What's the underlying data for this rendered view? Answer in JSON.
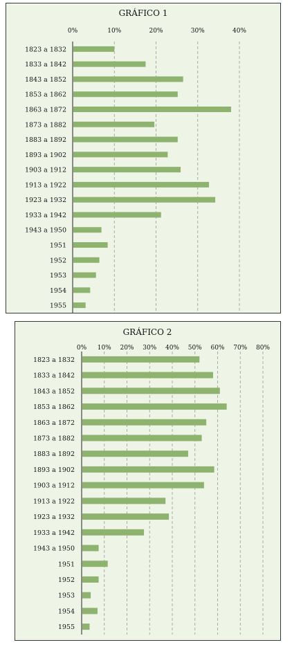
{
  "charts": [
    {
      "type": "bar",
      "orientation": "horizontal",
      "title": "GRÁFICO 1",
      "x_ticks": [
        "0%",
        "10%",
        "20%",
        "30%",
        "40%"
      ],
      "xlim": [
        0,
        40
      ],
      "grid": "vertical dashed",
      "bar_color": "#8db36f",
      "categories": [
        "1823 a 1832",
        "1833 a 1842",
        "1843 a 1852",
        "1853 a 1862",
        "1863 a 1872",
        "1873 a 1882",
        "1883 a 1892",
        "1893 a 1902",
        "1903 a 1912",
        "1913 a 1922",
        "1923 a 1932",
        "1933 a 1942",
        "1943 a 1950",
        "1951",
        "1952",
        "1953",
        "1954",
        "1955"
      ],
      "values": [
        10,
        17.5,
        26.5,
        25.2,
        38,
        19.6,
        25.2,
        22.8,
        25.9,
        32.7,
        34.2,
        21.2,
        6.9,
        8.4,
        6.4,
        5.6,
        4.2,
        3.1
      ]
    },
    {
      "type": "bar",
      "orientation": "horizontal",
      "title": "GRÁFICO 2",
      "x_ticks": [
        "0%",
        "10%",
        "20%",
        "30%",
        "40%",
        "50%",
        "60%",
        "70%",
        "80%"
      ],
      "xlim": [
        0,
        80
      ],
      "grid": "vertical dashed",
      "bar_color": "#8db36f",
      "categories": [
        "1823 a 1832",
        "1833 a 1842",
        "1843 a 1852",
        "1853 a 1862",
        "1863 a 1872",
        "1873 a 1882",
        "1883 a 1892",
        "1893 a 1902",
        "1903 a 1912",
        "1913 a 1922",
        "1923 a 1932",
        "1933 a 1942",
        "1943 a 1950",
        "1951",
        "1952",
        "1953",
        "1954",
        "1955"
      ],
      "values": [
        52,
        58,
        61,
        64,
        55,
        53,
        47,
        58.5,
        54,
        37,
        38.5,
        27.5,
        7.5,
        11.5,
        7.5,
        4,
        7,
        3.5
      ]
    }
  ]
}
